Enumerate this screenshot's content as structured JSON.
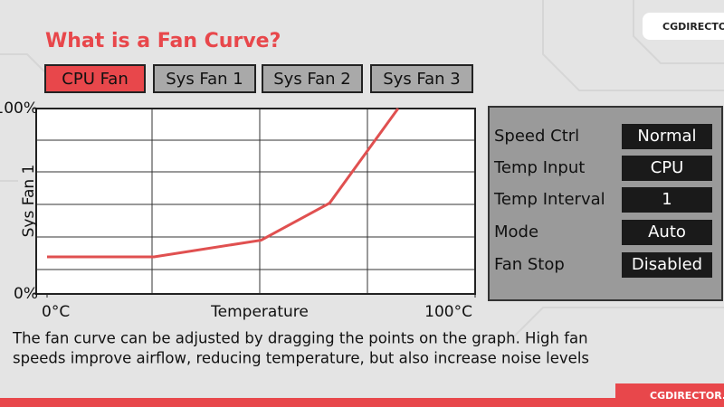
{
  "logo": "CGDIRECTOR",
  "header": {
    "title": "What is a Fan Curve?"
  },
  "tabs": [
    "CPU Fan",
    "Sys Fan 1",
    "Sys Fan 2",
    "Sys Fan 3"
  ],
  "chart_data": {
    "type": "line",
    "y_label": "Sys Fan 1",
    "x_label": "Temperature",
    "series": [
      {
        "color": "#e05050",
        "x": [
          0,
          25,
          50,
          66,
          82
        ],
        "values": [
          20,
          20,
          29,
          49,
          100
        ]
      }
    ],
    "xlim": [
      0,
      100
    ],
    "xticks": [
      {
        "value": 0,
        "label": "0°C"
      },
      {
        "value": 100,
        "label": "100°C"
      }
    ],
    "ylim": [
      0,
      100
    ],
    "yticks": [
      {
        "value": 0,
        "label": "0%"
      },
      {
        "value": 100,
        "label": "100%"
      }
    ]
  },
  "settings": [
    [
      "Speed Ctrl",
      "Normal"
    ],
    [
      "Temp Input",
      "CPU"
    ],
    [
      "Temp Interval",
      "1"
    ],
    [
      "Mode",
      "Auto"
    ],
    [
      "Fan Stop",
      "Disabled"
    ]
  ],
  "caption": [
    "The fan curve can be adjusted by dragging the points on the graph. High fan",
    "speeds improve airflow, reducing temperature, but also increase noise levels"
  ],
  "footer": "CGDIRECTOR.CO"
}
